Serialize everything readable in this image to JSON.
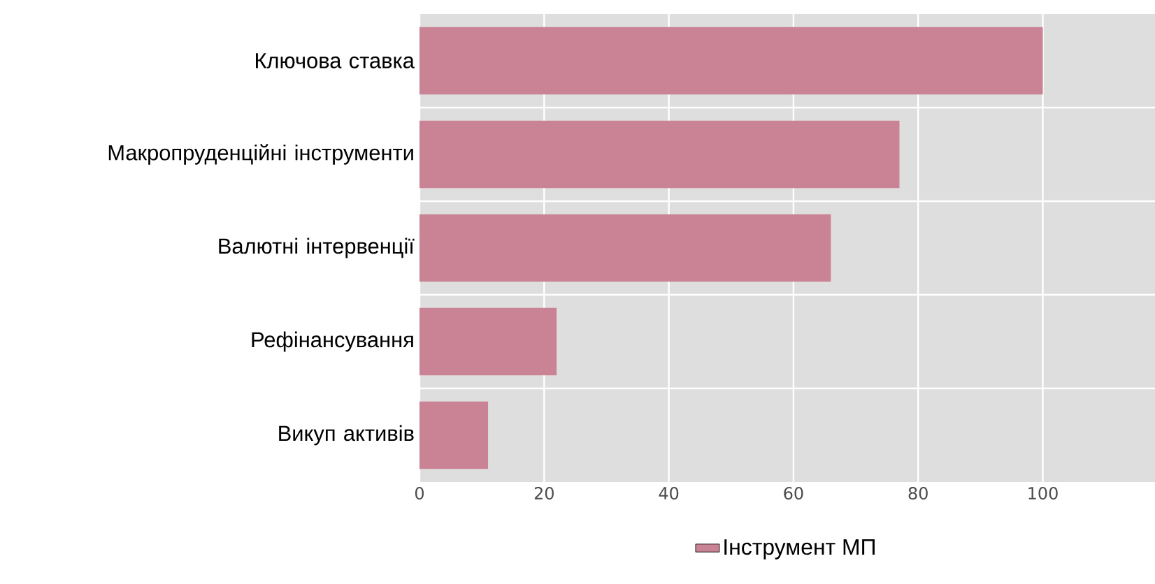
{
  "chart_data": {
    "type": "bar",
    "orientation": "horizontal",
    "categories": [
      "Ключова ставка",
      "Макропруденційні інструменти",
      "Валютні інтервенції",
      "Рефінансування",
      "Викуп активів"
    ],
    "series": [
      {
        "name": "Інструмент МП",
        "color": "#c98395",
        "values": [
          100,
          77,
          66,
          22,
          11
        ]
      }
    ],
    "xlim": [
      0,
      118
    ],
    "xticks": [
      0,
      20,
      40,
      60,
      80,
      100
    ],
    "grid": true,
    "legend": "bottom"
  }
}
